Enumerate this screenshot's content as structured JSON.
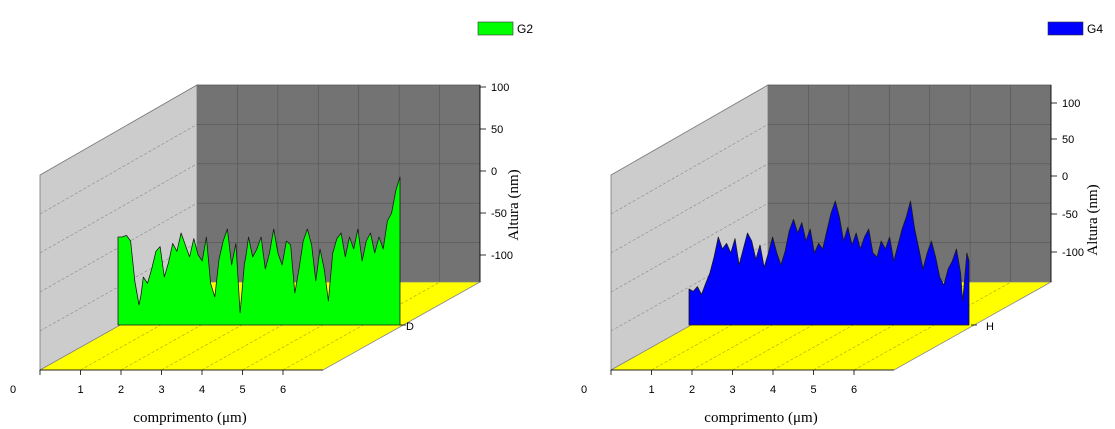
{
  "chart_data": [
    {
      "type": "area",
      "series": [
        {
          "name": "G2",
          "color": "#00ff00",
          "x": [
            0,
            0.1,
            0.2,
            0.3,
            0.4,
            0.5,
            0.55,
            0.6,
            0.7,
            0.8,
            0.9,
            1.0,
            1.1,
            1.2,
            1.3,
            1.4,
            1.5,
            1.6,
            1.7,
            1.8,
            1.9,
            2.0,
            2.1,
            2.2,
            2.3,
            2.4,
            2.5,
            2.6,
            2.7,
            2.8,
            2.9,
            3.0,
            3.05,
            3.1,
            3.2,
            3.3,
            3.4,
            3.5,
            3.6,
            3.7,
            3.8,
            3.9,
            4.0,
            4.1,
            4.2,
            4.3,
            4.4,
            4.5,
            4.6,
            4.7,
            4.8,
            4.9,
            5.0,
            5.1,
            5.2,
            5.3,
            5.4,
            5.5,
            5.6,
            5.7,
            5.8,
            5.9,
            6.0,
            6.1,
            6.2,
            6.3,
            6.4,
            6.5,
            6.6,
            6.7
          ],
          "y": [
            -40,
            -40,
            -38,
            -45,
            -95,
            -125,
            -112,
            -90,
            -98,
            -80,
            -58,
            -52,
            -90,
            -72,
            -48,
            -58,
            -35,
            -50,
            -65,
            -42,
            -62,
            -70,
            -40,
            -98,
            -115,
            -68,
            -45,
            -30,
            -75,
            -48,
            -135,
            -75,
            -60,
            -40,
            -65,
            -55,
            -40,
            -80,
            -60,
            -30,
            -60,
            -75,
            -45,
            -50,
            -110,
            -80,
            -45,
            -30,
            -50,
            -95,
            -55,
            -80,
            -120,
            -60,
            -42,
            -35,
            -65,
            -40,
            -55,
            -30,
            -70,
            -45,
            -35,
            -60,
            -40,
            -55,
            -20,
            -10,
            18,
            35
          ]
        }
      ],
      "xlabel": "comprimento (μm)",
      "xticks": [
        "0",
        "1",
        "2",
        "3",
        "4",
        "5",
        "6"
      ],
      "ylabel": "Altura (nm)",
      "yticks": [
        "100",
        "50",
        "0",
        "-50",
        "-100"
      ],
      "ylim": [
        -150,
        100
      ],
      "zlabel": "D",
      "legend_position": "top-right",
      "wall_colors": {
        "back": "#737373",
        "side": "#cccccc",
        "floor": "#ffff00"
      }
    },
    {
      "type": "area",
      "series": [
        {
          "name": "G4",
          "color": "#0000ff",
          "x": [
            0,
            0.1,
            0.2,
            0.3,
            0.4,
            0.5,
            0.6,
            0.7,
            0.8,
            0.9,
            1.0,
            1.1,
            1.2,
            1.3,
            1.4,
            1.5,
            1.6,
            1.7,
            1.8,
            1.9,
            2.0,
            2.1,
            2.2,
            2.3,
            2.4,
            2.5,
            2.6,
            2.7,
            2.8,
            2.9,
            3.0,
            3.1,
            3.2,
            3.3,
            3.4,
            3.5,
            3.6,
            3.7,
            3.8,
            3.9,
            4.0,
            4.1,
            4.2,
            4.3,
            4.4,
            4.5,
            4.6,
            4.7,
            4.8,
            4.9,
            5.0,
            5.1,
            5.2,
            5.3,
            5.4,
            5.5,
            5.6,
            5.7,
            5.8,
            5.9,
            6.0,
            6.1,
            6.2,
            6.3,
            6.4,
            6.5,
            6.55,
            6.6,
            6.65,
            6.7
          ],
          "y": [
            -105,
            -108,
            -102,
            -112,
            -98,
            -85,
            -65,
            -40,
            -55,
            -48,
            -60,
            -42,
            -75,
            -55,
            -35,
            -45,
            -68,
            -50,
            -78,
            -60,
            -40,
            -60,
            -75,
            -58,
            -32,
            -18,
            -35,
            -22,
            -45,
            -30,
            -60,
            -48,
            -55,
            -32,
            -10,
            5,
            -15,
            -45,
            -28,
            -50,
            -35,
            -55,
            -40,
            -30,
            -60,
            -65,
            -45,
            -55,
            -40,
            -70,
            -50,
            -30,
            -15,
            5,
            -30,
            -55,
            -80,
            -60,
            -45,
            -65,
            -90,
            -100,
            -80,
            -70,
            -55,
            -85,
            -120,
            -90,
            -60,
            -70
          ]
        }
      ],
      "xlabel": "comprimento (μm)",
      "xticks": [
        "0",
        "1",
        "2",
        "3",
        "4",
        "5",
        "6"
      ],
      "ylabel": "Altura (nm)",
      "yticks": [
        "100",
        "50",
        "0",
        "-50",
        "-100"
      ],
      "ylim": [
        -150,
        100
      ],
      "zlabel": "H",
      "legend_position": "top-right",
      "wall_colors": {
        "back": "#737373",
        "side": "#cccccc",
        "floor": "#ffff00"
      }
    }
  ]
}
